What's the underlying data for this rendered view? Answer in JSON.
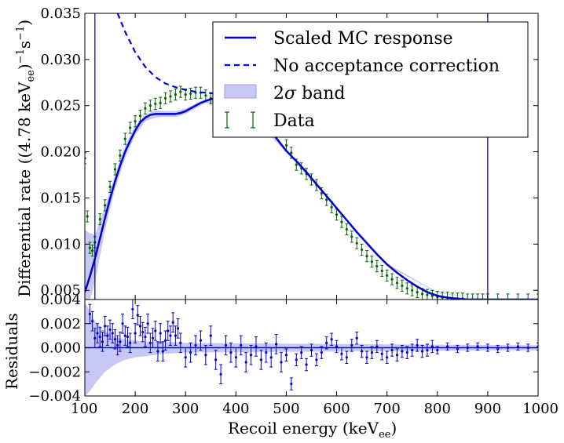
{
  "chart_data": [
    {
      "panel": "main",
      "type": "line",
      "xlabel": "",
      "ylabel_main": "Differential rate ((4.78 keV",
      "ylabel_sub": "ee",
      "ylabel_tail": ")",
      "ylabel_sup1": "−1",
      "ylabel_s": "s",
      "ylabel_sup2": "−1",
      "ylabel_close": ")",
      "xlim": [
        100,
        1000
      ],
      "ylim": [
        0.004,
        0.035
      ],
      "xticks": [
        "100",
        "200",
        "300",
        "400",
        "500",
        "600",
        "700",
        "800",
        "900",
        "1000"
      ],
      "yticks": [
        "0.004",
        "0.005",
        "0.010",
        "0.015",
        "0.020",
        "0.025",
        "0.030",
        "0.035"
      ],
      "yticks_values": [
        0.004,
        0.005,
        0.01,
        0.015,
        0.02,
        0.025,
        0.03,
        0.035
      ],
      "vertical_lines": [
        120,
        900
      ],
      "legend_position": "top-right",
      "legend": [
        {
          "label": "Scaled MC response",
          "style": "solid line",
          "color": "#0000cc"
        },
        {
          "label": "No acceptance correction",
          "style": "dashed line",
          "color": "#0000ee"
        },
        {
          "label_pre": "2",
          "label_sigma": "σ",
          "label_post": " band",
          "style": "shaded band",
          "color": "#b8b8f5"
        },
        {
          "label": "Data",
          "style": "error bars",
          "color": "#006600"
        }
      ],
      "series": [
        {
          "name": "Scaled MC response",
          "x": [
            100,
            110,
            120,
            130,
            140,
            150,
            160,
            170,
            180,
            190,
            200,
            210,
            220,
            230,
            240,
            250,
            260,
            270,
            280,
            290,
            300,
            310,
            320,
            330,
            340,
            350,
            360,
            380,
            400,
            420,
            440,
            460,
            480,
            500,
            520,
            540,
            560,
            580,
            600,
            620,
            640,
            660,
            680,
            700,
            720,
            740,
            760,
            780,
            800,
            820,
            840,
            860,
            880,
            900,
            920,
            940,
            960,
            980,
            1000
          ],
          "y": [
            0.0048,
            0.0065,
            0.0084,
            0.0106,
            0.0128,
            0.0149,
            0.0168,
            0.0185,
            0.02,
            0.0212,
            0.0223,
            0.0232,
            0.0237,
            0.024,
            0.0241,
            0.0241,
            0.0241,
            0.0241,
            0.0241,
            0.0242,
            0.0244,
            0.0247,
            0.025,
            0.0253,
            0.0255,
            0.0257,
            0.0258,
            0.0258,
            0.0256,
            0.025,
            0.024,
            0.0228,
            0.0215,
            0.0201,
            0.019,
            0.0178,
            0.0165,
            0.0152,
            0.0139,
            0.0126,
            0.0113,
            0.0101,
            0.0089,
            0.0078,
            0.0069,
            0.0061,
            0.0054,
            0.0048,
            0.0044,
            0.0042,
            0.0041,
            0.004,
            0.004,
            0.004,
            0.004,
            0.004,
            0.004,
            0.004,
            0.004
          ]
        },
        {
          "name": "No acceptance correction",
          "x": [
            165,
            180,
            200,
            220,
            240,
            260,
            280,
            300,
            320,
            340,
            360
          ],
          "y": [
            0.035,
            0.033,
            0.0308,
            0.0292,
            0.0281,
            0.0274,
            0.027,
            0.0267,
            0.0265,
            0.0264,
            0.0263
          ]
        },
        {
          "name": "Data",
          "x": [
            100,
            105,
            110,
            115,
            120,
            130,
            140,
            150,
            160,
            170,
            180,
            190,
            200,
            210,
            220,
            230,
            240,
            250,
            260,
            270,
            280,
            290,
            300,
            310,
            320,
            330,
            340,
            350,
            360,
            500,
            510,
            520,
            530,
            540,
            550,
            560,
            570,
            580,
            590,
            600,
            610,
            620,
            630,
            640,
            650,
            660,
            670,
            680,
            690,
            700,
            710,
            720,
            730,
            740,
            750,
            760,
            770,
            780,
            790,
            800,
            810,
            820,
            830,
            840,
            850,
            860,
            870,
            880,
            890,
            900,
            920,
            940,
            960,
            980,
            1000
          ],
          "y": [
            0.0193,
            0.013,
            0.0096,
            0.0093,
            0.0102,
            0.0127,
            0.0142,
            0.0162,
            0.0181,
            0.0196,
            0.0214,
            0.0226,
            0.0233,
            0.0239,
            0.0247,
            0.025,
            0.0252,
            0.0253,
            0.0258,
            0.026,
            0.0262,
            0.0265,
            0.0262,
            0.0263,
            0.0264,
            0.0264,
            0.0261,
            0.0258,
            0.026,
            0.0207,
            0.0199,
            0.0186,
            0.0182,
            0.0176,
            0.017,
            0.0164,
            0.0155,
            0.0148,
            0.014,
            0.0132,
            0.0124,
            0.0116,
            0.0108,
            0.0101,
            0.0094,
            0.0087,
            0.0081,
            0.0076,
            0.0071,
            0.0066,
            0.0062,
            0.0058,
            0.0055,
            0.0052,
            0.005,
            0.0048,
            0.0046,
            0.0045,
            0.0044,
            0.0043,
            0.0042,
            0.0042,
            0.0041,
            0.0041,
            0.0041,
            0.004,
            0.004,
            0.004,
            0.004,
            0.004,
            0.004,
            0.004,
            0.004,
            0.004,
            0.004
          ]
        }
      ],
      "band": {
        "x": [
          100,
          110,
          120,
          140,
          160,
          180,
          200,
          220,
          240,
          260,
          280,
          300,
          340,
          400,
          500,
          600,
          700,
          800,
          900,
          1000
        ],
        "upper": [
          0.0115,
          0.0112,
          0.011,
          0.014,
          0.0175,
          0.0207,
          0.0228,
          0.024,
          0.0245,
          0.0244,
          0.0244,
          0.0247,
          0.0257,
          0.0258,
          0.0202,
          0.014,
          0.0079,
          0.0048,
          0.004,
          0.004
        ],
        "lower": [
          0.004,
          0.004,
          0.0058,
          0.0115,
          0.016,
          0.0193,
          0.0218,
          0.0233,
          0.0237,
          0.0238,
          0.0238,
          0.0241,
          0.0253,
          0.0254,
          0.02,
          0.0138,
          0.0077,
          0.0047,
          0.004,
          0.004
        ]
      }
    },
    {
      "panel": "residuals",
      "type": "scatter",
      "xlabel_main": "Recoil energy (keV",
      "xlabel_sub": "ee",
      "xlabel_close": ")",
      "ylabel": "Residuals",
      "xlim": [
        100,
        1000
      ],
      "ylim": [
        -0.004,
        0.004
      ],
      "xticks": [
        "100",
        "200",
        "300",
        "400",
        "500",
        "600",
        "700",
        "800",
        "900",
        "1000"
      ],
      "yticks": [
        "−0.004",
        "−0.002",
        "0.000",
        "0.002"
      ],
      "yticks_values": [
        -0.004,
        -0.002,
        0.0,
        0.002
      ],
      "band": {
        "x": [
          100,
          110,
          120,
          140,
          160,
          180,
          200,
          220,
          240,
          260,
          300,
          1000
        ],
        "upper": [
          0.0038,
          0.003,
          0.0022,
          0.0014,
          0.0009,
          0.0007,
          0.0006,
          0.0005,
          0.0005,
          0.0005,
          0.0004,
          0.0002
        ],
        "lower": [
          -0.004,
          -0.0036,
          -0.003,
          -0.002,
          -0.0014,
          -0.001,
          -0.0008,
          -0.0007,
          -0.0006,
          -0.0005,
          -0.0004,
          -0.0002
        ]
      },
      "series": [
        {
          "name": "Residuals",
          "x": [
            110,
            115,
            120,
            125,
            130,
            135,
            140,
            145,
            150,
            155,
            160,
            165,
            170,
            175,
            180,
            185,
            190,
            195,
            200,
            205,
            210,
            215,
            220,
            225,
            230,
            235,
            240,
            245,
            250,
            255,
            260,
            265,
            270,
            275,
            280,
            285,
            290,
            300,
            310,
            320,
            330,
            340,
            350,
            360,
            370,
            380,
            390,
            400,
            410,
            420,
            430,
            440,
            450,
            460,
            470,
            480,
            490,
            500,
            510,
            520,
            530,
            540,
            550,
            560,
            570,
            580,
            590,
            600,
            610,
            620,
            630,
            640,
            650,
            660,
            670,
            680,
            690,
            700,
            710,
            720,
            730,
            740,
            750,
            760,
            770,
            780,
            790,
            800,
            820,
            840,
            860,
            880,
            900,
            920,
            940,
            960,
            980,
            1000
          ],
          "y": [
            0.0028,
            0.0022,
            0.0008,
            0.0012,
            0.0009,
            0.0005,
            0.0018,
            0.001,
            0.0015,
            0.0012,
            0.0007,
            0.0002,
            0.0005,
            0.002,
            0.001,
            0.0009,
            0.0004,
            0.0032,
            0.0012,
            0.0027,
            0.0018,
            0.0013,
            0.0009,
            0.002,
            0.0004,
            0.0008,
            0.0014,
            -0.0003,
            0.0012,
            -0.0003,
            0.0006,
            0.0014,
            0.001,
            0.0021,
            0.001,
            0.0016,
            0.0004,
            -0.0008,
            -0.0004,
            0.0002,
            0.0006,
            -0.0006,
            0.001,
            -0.001,
            -0.0022,
            0.0002,
            -0.0004,
            -0.0008,
            0.0002,
            -0.0012,
            -0.0006,
            0.0001,
            -0.001,
            -0.0004,
            -0.0008,
            0.0003,
            -0.0012,
            -0.0006,
            -0.003,
            -0.001,
            -0.0004,
            -0.0014,
            -0.0002,
            -0.001,
            -0.0004,
            0.0004,
            0.0007,
            0.0001,
            -0.0005,
            -0.0008,
            0.0002,
            0.0008,
            -0.0003,
            -0.0008,
            -0.0004,
            0.0001,
            -0.0005,
            -0.0008,
            -0.0002,
            -0.0006,
            -0.0003,
            -0.0004,
            -0.0002,
            0.0002,
            -0.0003,
            -0.0002,
            0.0001,
            -0.0002,
            0.0001,
            -0.0001,
            0.0,
            0.0001,
            0.0,
            -0.0001,
            0.0,
            0.0001,
            0.0,
            0.0001
          ]
        }
      ]
    }
  ]
}
